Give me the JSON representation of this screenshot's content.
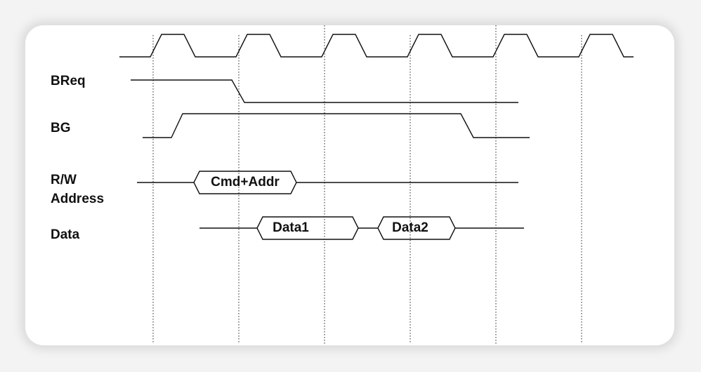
{
  "signals": {
    "breq": "BReq",
    "bg": "BG",
    "rw": "R/W",
    "address": "Address",
    "data": "Data"
  },
  "bus_values": {
    "cmd_addr": "Cmd+Addr",
    "data1": "Data1",
    "data2": "Data2"
  }
}
